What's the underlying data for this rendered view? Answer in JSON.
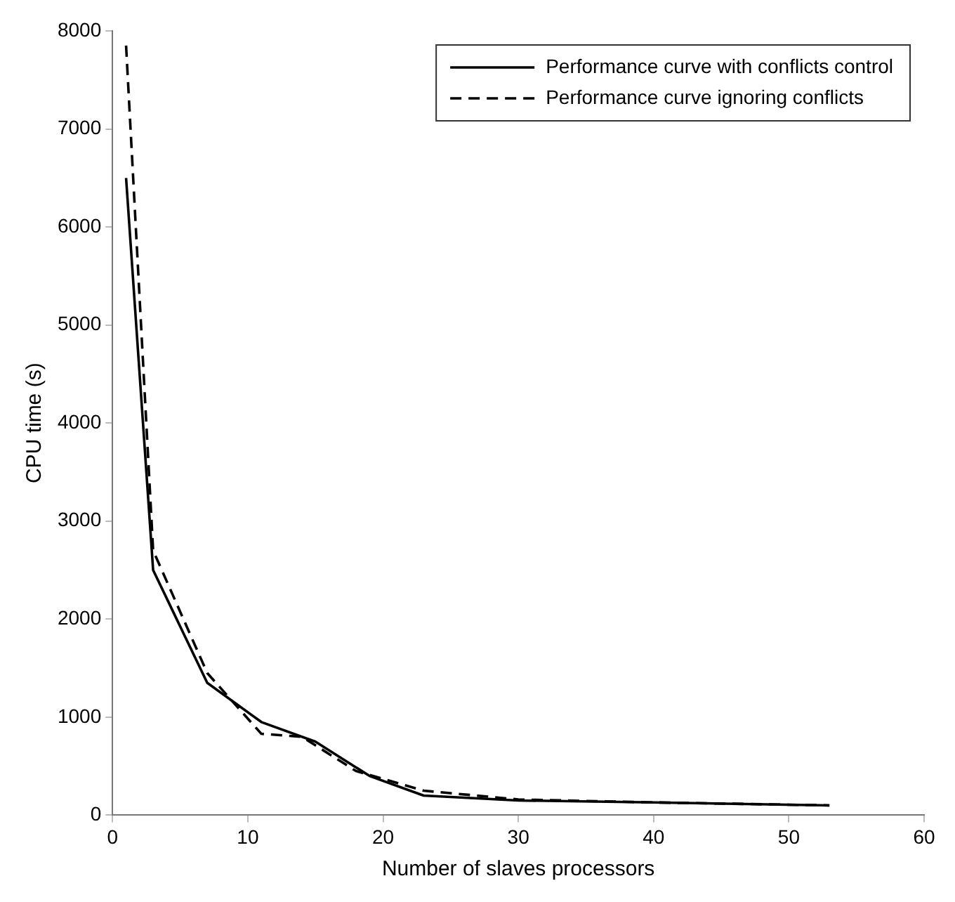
{
  "chart_data": {
    "type": "line",
    "xlabel": "Number of slaves processors",
    "ylabel": "CPU time (s)",
    "xlim": [
      0,
      60
    ],
    "xticks": [
      0,
      10,
      20,
      30,
      40,
      50,
      60
    ],
    "ylim": [
      0,
      8000
    ],
    "yticks": [
      0,
      1000,
      2000,
      3000,
      4000,
      5000,
      6000,
      7000,
      8000
    ],
    "grid": false,
    "legend": "top right",
    "marker": "none",
    "series": [
      {
        "name": "Performance curve with conflicts control",
        "color": "#000000",
        "line_style": "solid",
        "x": [
          1,
          3,
          7,
          11,
          15,
          19,
          23,
          30,
          40,
          53
        ],
        "values": [
          6500,
          2500,
          1350,
          950,
          750,
          400,
          200,
          150,
          130,
          100
        ]
      },
      {
        "name": "Performance curve ignoring conflicts",
        "color": "#000000",
        "line_style": "dashed",
        "x": [
          1,
          3,
          7,
          11,
          14,
          18,
          23,
          30,
          40,
          53
        ],
        "values": [
          7850,
          2700,
          1450,
          830,
          800,
          450,
          250,
          160,
          130,
          100
        ]
      }
    ]
  }
}
